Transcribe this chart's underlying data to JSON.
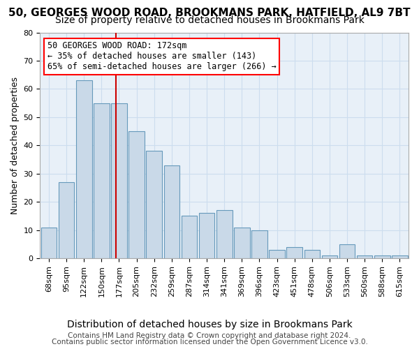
{
  "title": "50, GEORGES WOOD ROAD, BROOKMANS PARK, HATFIELD, AL9 7BT",
  "subtitle": "Size of property relative to detached houses in Brookmans Park",
  "xlabel": "Distribution of detached houses by size in Brookmans Park",
  "ylabel": "Number of detached properties",
  "categories": [
    "68sqm",
    "95sqm",
    "122sqm",
    "150sqm",
    "177sqm",
    "205sqm",
    "232sqm",
    "259sqm",
    "287sqm",
    "314sqm",
    "341sqm",
    "369sqm",
    "396sqm",
    "423sqm",
    "451sqm",
    "478sqm",
    "506sqm",
    "533sqm",
    "560sqm",
    "588sqm",
    "615sqm"
  ],
  "values": [
    11,
    27,
    63,
    55,
    55,
    45,
    38,
    33,
    15,
    16,
    17,
    11,
    10,
    3,
    4,
    3,
    1,
    5,
    1,
    1,
    1
  ],
  "bar_color": "#c9d9e8",
  "bar_edge_color": "#6699bb",
  "grid_color": "#ccddee",
  "background_color": "#e8f0f8",
  "annotation_text_line1": "50 GEORGES WOOD ROAD: 172sqm",
  "annotation_text_line2": "← 35% of detached houses are smaller (143)",
  "annotation_text_line3": "65% of semi-detached houses are larger (266) →",
  "annotation_box_color": "white",
  "annotation_border_color": "red",
  "red_line_color": "#cc0000",
  "red_line_x": 3.815,
  "ylim": [
    0,
    80
  ],
  "yticks": [
    0,
    10,
    20,
    30,
    40,
    50,
    60,
    70,
    80
  ],
  "footer_line1": "Contains HM Land Registry data © Crown copyright and database right 2024.",
  "footer_line2": "Contains public sector information licensed under the Open Government Licence v3.0.",
  "title_fontsize": 11,
  "subtitle_fontsize": 10,
  "xlabel_fontsize": 10,
  "ylabel_fontsize": 9,
  "tick_fontsize": 8,
  "footer_fontsize": 7.5,
  "annotation_fontsize": 8.5
}
